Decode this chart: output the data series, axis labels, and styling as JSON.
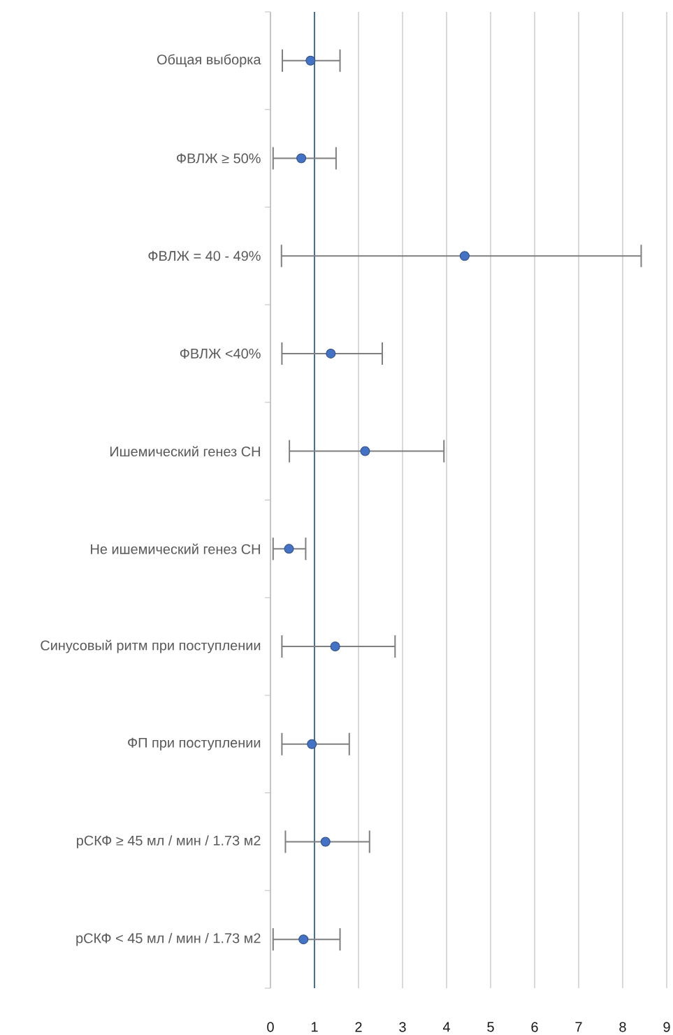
{
  "chart_data": {
    "type": "scatter",
    "orientation": "horizontal",
    "categories": [
      "Общая выборка",
      "ФВЛЖ ≥ 50%",
      "ФВЛЖ = 40 - 49%",
      "ФВЛЖ <40%",
      "Ишемический генез СН",
      "Не ишемический генез СН",
      "Синусовый ритм при поступлении",
      "ФП при поступлении",
      "рСКФ ≥ 45 мл / мин / 1.73 м2",
      "рСКФ < 45 мл / мин / 1.73 м2"
    ],
    "values": [
      0.91,
      0.7,
      4.41,
      1.37,
      2.15,
      0.42,
      1.47,
      0.94,
      1.25,
      0.75
    ],
    "errors": [
      [
        0.27,
        1.58
      ],
      [
        0.06,
        1.49
      ],
      [
        0.25,
        8.42
      ],
      [
        0.26,
        2.54
      ],
      [
        0.43,
        3.94
      ],
      [
        0.06,
        0.8
      ],
      [
        0.26,
        2.83
      ],
      [
        0.26,
        1.79
      ],
      [
        0.34,
        2.25
      ],
      [
        0.06,
        1.58
      ]
    ],
    "color": "#4472c4",
    "marker": "circle",
    "xlim": [
      0,
      9
    ],
    "xticks": [
      0,
      1,
      2,
      3,
      4,
      5,
      6,
      7,
      8,
      9
    ],
    "grid": "x",
    "ref_lines": [
      {
        "axis": "x",
        "value": 1,
        "color": "#41719c"
      }
    ]
  }
}
